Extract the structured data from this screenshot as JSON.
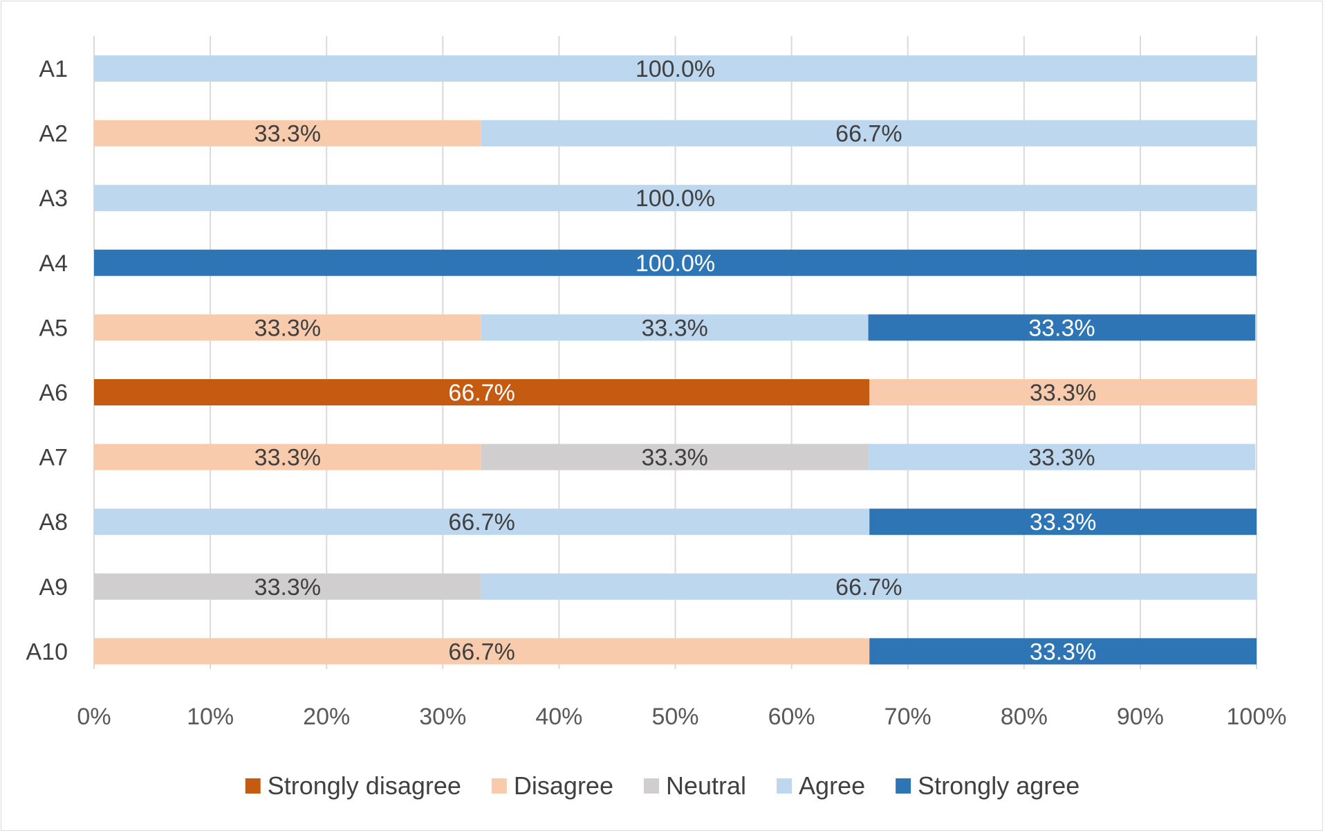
{
  "chart_data": {
    "type": "bar",
    "orientation": "horizontal",
    "stacked": "percent",
    "categories": [
      "A1",
      "A2",
      "A3",
      "A4",
      "A5",
      "A6",
      "A7",
      "A8",
      "A9",
      "A10"
    ],
    "series": [
      {
        "name": "Strongly disagree",
        "color": "#c55a11",
        "values": [
          0,
          0,
          0,
          0,
          0,
          66.7,
          0,
          0,
          0,
          0
        ]
      },
      {
        "name": "Disagree",
        "color": "#f8cbad",
        "values": [
          0,
          33.3,
          0,
          0,
          33.3,
          33.3,
          33.3,
          0,
          0,
          66.7
        ]
      },
      {
        "name": "Neutral",
        "color": "#d0cece",
        "values": [
          0,
          0,
          0,
          0,
          0,
          0,
          33.3,
          0,
          33.3,
          0
        ]
      },
      {
        "name": "Agree",
        "color": "#bdd7ee",
        "values": [
          100.0,
          66.7,
          100.0,
          0,
          33.3,
          0,
          33.3,
          66.7,
          66.7,
          0
        ]
      },
      {
        "name": "Strongly agree",
        "color": "#2e75b6",
        "values": [
          0,
          0,
          0,
          100.0,
          33.3,
          0,
          0,
          33.3,
          0,
          33.3
        ]
      }
    ],
    "xlim": [
      0,
      100
    ],
    "x_ticks": [
      "0%",
      "10%",
      "20%",
      "30%",
      "40%",
      "50%",
      "60%",
      "70%",
      "80%",
      "90%",
      "100%"
    ],
    "data_label_format": "percent-1dp",
    "grid": "vertical",
    "legend": "bottom",
    "title": "",
    "xlabel": "",
    "ylabel": ""
  }
}
